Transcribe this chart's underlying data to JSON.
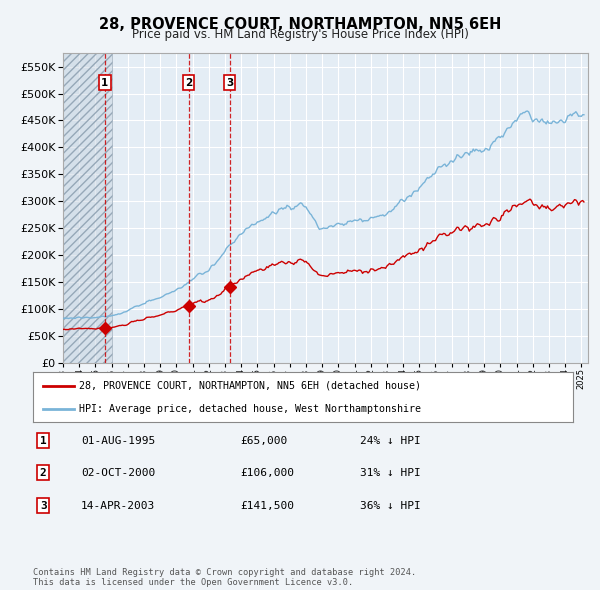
{
  "title": "28, PROVENCE COURT, NORTHAMPTON, NN5 6EH",
  "subtitle": "Price paid vs. HM Land Registry's House Price Index (HPI)",
  "sale_dates": [
    "1995-08-01",
    "2000-10-02",
    "2003-04-14"
  ],
  "sale_prices": [
    65000,
    106000,
    141500
  ],
  "sale_labels": [
    "1",
    "2",
    "3"
  ],
  "legend_line1": "28, PROVENCE COURT, NORTHAMPTON, NN5 6EH (detached house)",
  "legend_line2": "HPI: Average price, detached house, West Northamptonshire",
  "table_rows": [
    [
      "1",
      "01-AUG-1995",
      "£65,000",
      "24% ↓ HPI"
    ],
    [
      "2",
      "02-OCT-2000",
      "£106,000",
      "31% ↓ HPI"
    ],
    [
      "3",
      "14-APR-2003",
      "£141,500",
      "36% ↓ HPI"
    ]
  ],
  "footer": "Contains HM Land Registry data © Crown copyright and database right 2024.\nThis data is licensed under the Open Government Licence v3.0.",
  "hpi_color": "#7ab4d8",
  "price_color": "#cc0000",
  "vline_color": "#cc0000",
  "bg_color": "#f0f4f8",
  "plot_bg": "#e4edf5",
  "grid_color": "#ffffff",
  "ylim": [
    0,
    575000
  ],
  "title_fontsize": 10.5,
  "subtitle_fontsize": 8.5
}
